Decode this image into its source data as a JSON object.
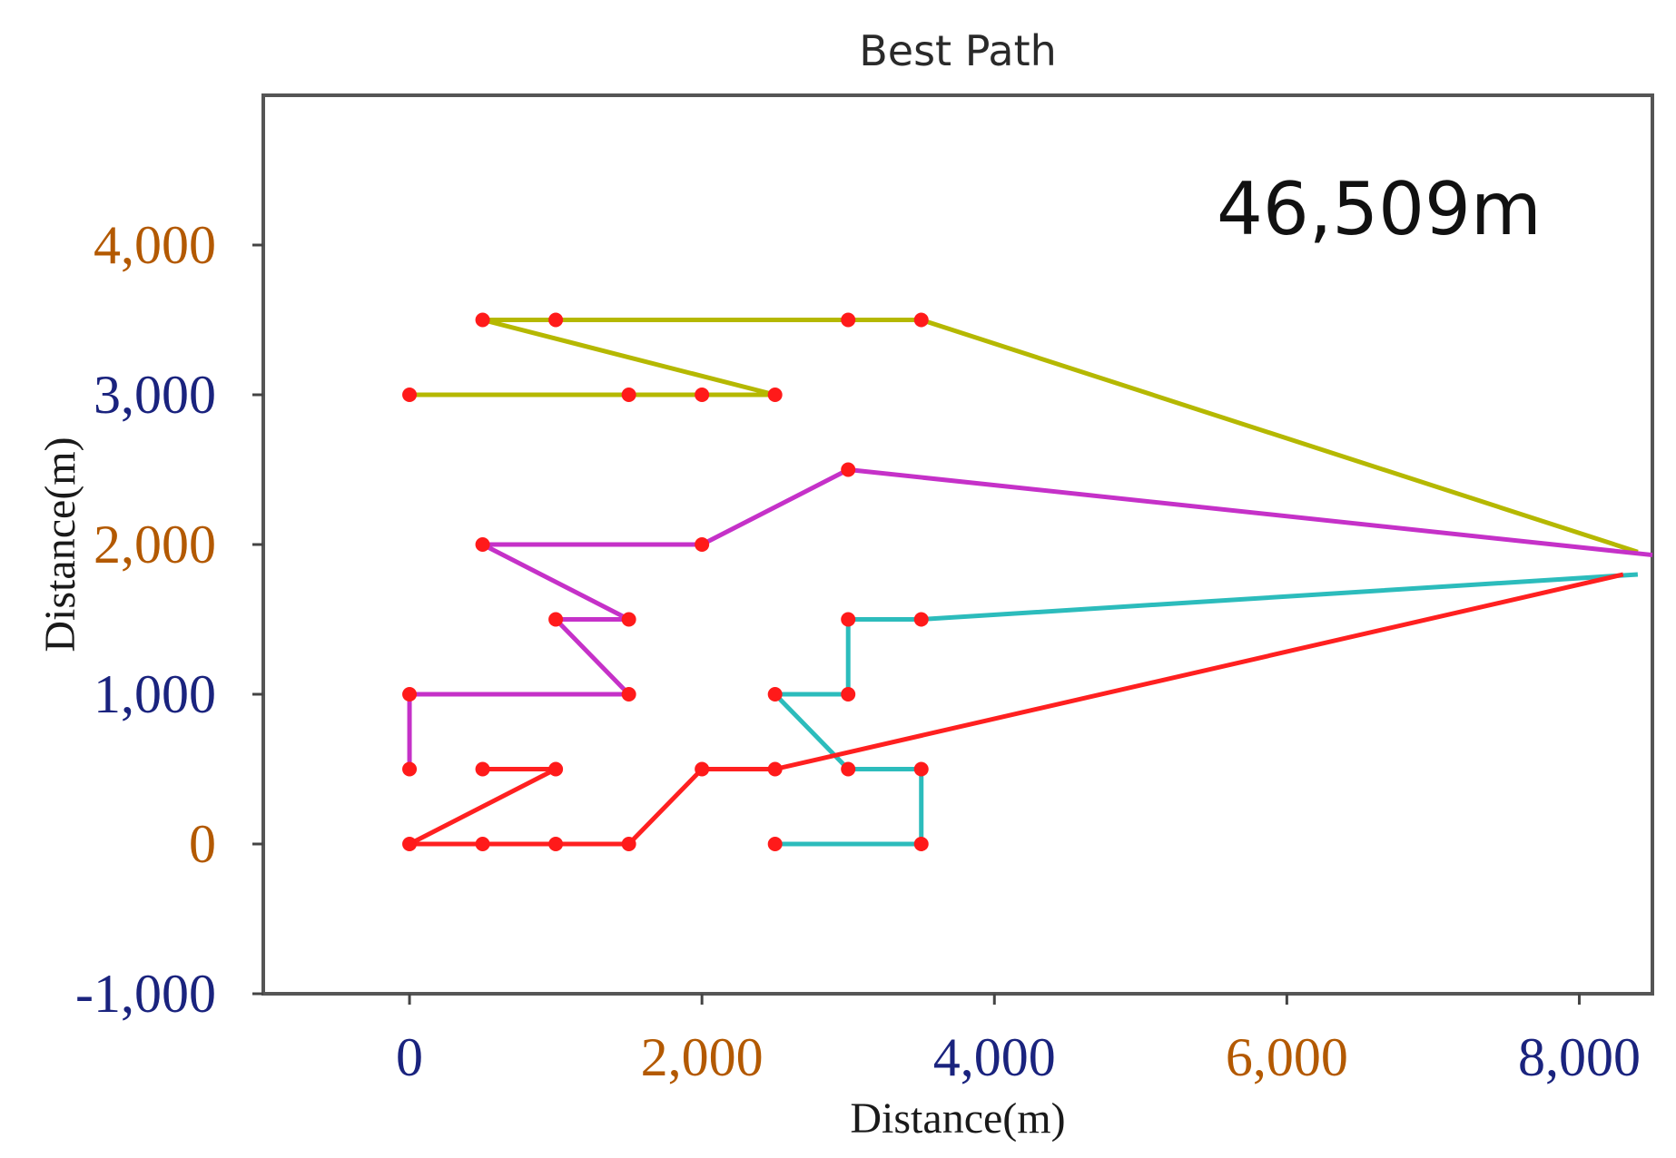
{
  "chart_data": {
    "type": "line",
    "title": "Best Path",
    "xlabel": "Distance(m)",
    "ylabel": "Distance(m)",
    "annotation": "46,509m",
    "xlim": [
      -1000,
      8500
    ],
    "ylim": [
      -1000,
      5000
    ],
    "xticks": [
      0,
      2000,
      4000,
      6000,
      8000
    ],
    "xtick_labels": [
      "0",
      "2,000",
      "4,000",
      "6,000",
      "8,000"
    ],
    "yticks": [
      -1000,
      0,
      1000,
      2000,
      3000,
      4000
    ],
    "ytick_labels": [
      "-1,000",
      "0",
      "1,000",
      "2,000",
      "3,000",
      "4,000"
    ],
    "grid": false,
    "depot": [
      8400,
      1900
    ],
    "series": [
      {
        "color": "#b5b800",
        "points": [
          [
            0,
            3000
          ],
          [
            1500,
            3000
          ],
          [
            2000,
            3000
          ],
          [
            2500,
            3000
          ],
          [
            500,
            3500
          ],
          [
            1000,
            3500
          ],
          [
            3000,
            3500
          ],
          [
            3500,
            3500
          ],
          [
            8400,
            1950
          ]
        ]
      },
      {
        "color": "#c531c8",
        "points": [
          [
            0,
            500
          ],
          [
            0,
            1000
          ],
          [
            1500,
            1000
          ],
          [
            1000,
            1500
          ],
          [
            1500,
            1500
          ],
          [
            500,
            2000
          ],
          [
            2000,
            2000
          ],
          [
            3000,
            2500
          ],
          [
            8500,
            1930
          ]
        ]
      },
      {
        "color": "#2cbcbc",
        "points": [
          [
            2500,
            0
          ],
          [
            3500,
            0
          ],
          [
            3500,
            500
          ],
          [
            3000,
            500
          ],
          [
            2500,
            1000
          ],
          [
            3000,
            1000
          ],
          [
            3000,
            1500
          ],
          [
            3500,
            1500
          ],
          [
            8400,
            1800
          ]
        ]
      },
      {
        "color": "#ff2020",
        "points": [
          [
            8300,
            1800
          ],
          [
            2500,
            500
          ],
          [
            2000,
            500
          ],
          [
            1500,
            0
          ],
          [
            1000,
            0
          ],
          [
            500,
            0
          ],
          [
            0,
            0
          ],
          [
            1000,
            500
          ],
          [
            500,
            500
          ]
        ]
      }
    ],
    "marker_color": "#ff1a1a"
  }
}
